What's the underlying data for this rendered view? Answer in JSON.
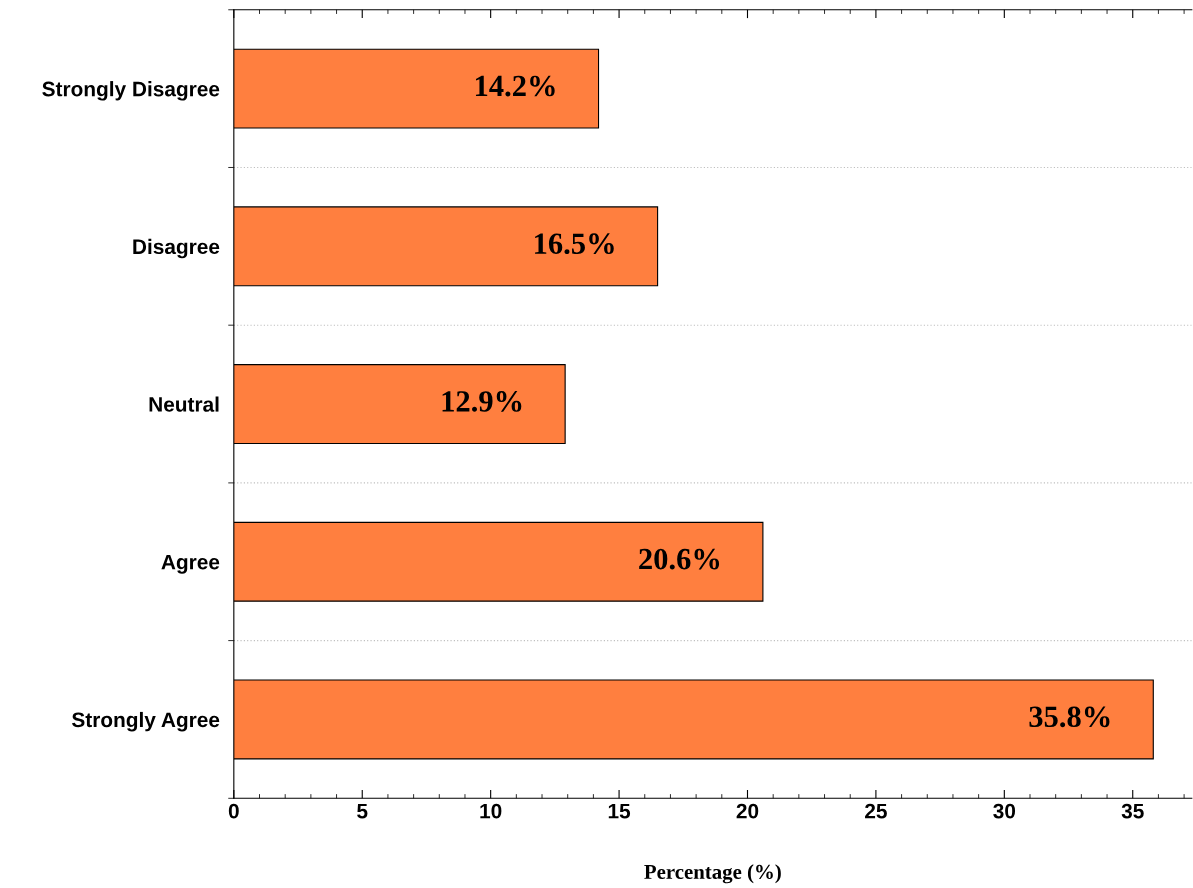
{
  "chart_data": {
    "type": "bar",
    "orientation": "horizontal",
    "xlabel": "Percentage (%)",
    "categories": [
      "Strongly Disagree",
      "Disagree",
      "Neutral",
      "Agree",
      "Strongly Agree"
    ],
    "values": [
      14.2,
      16.5,
      12.9,
      20.6,
      35.8
    ],
    "value_labels": [
      "14.2%",
      "16.5%",
      "12.9%",
      "20.6%",
      "35.8%"
    ],
    "color": "#ff7f3f",
    "xlim": [
      0,
      37.3
    ],
    "xticks": [
      0,
      5,
      10,
      15,
      20,
      25,
      30,
      35
    ],
    "grid": "y",
    "legend": false
  }
}
